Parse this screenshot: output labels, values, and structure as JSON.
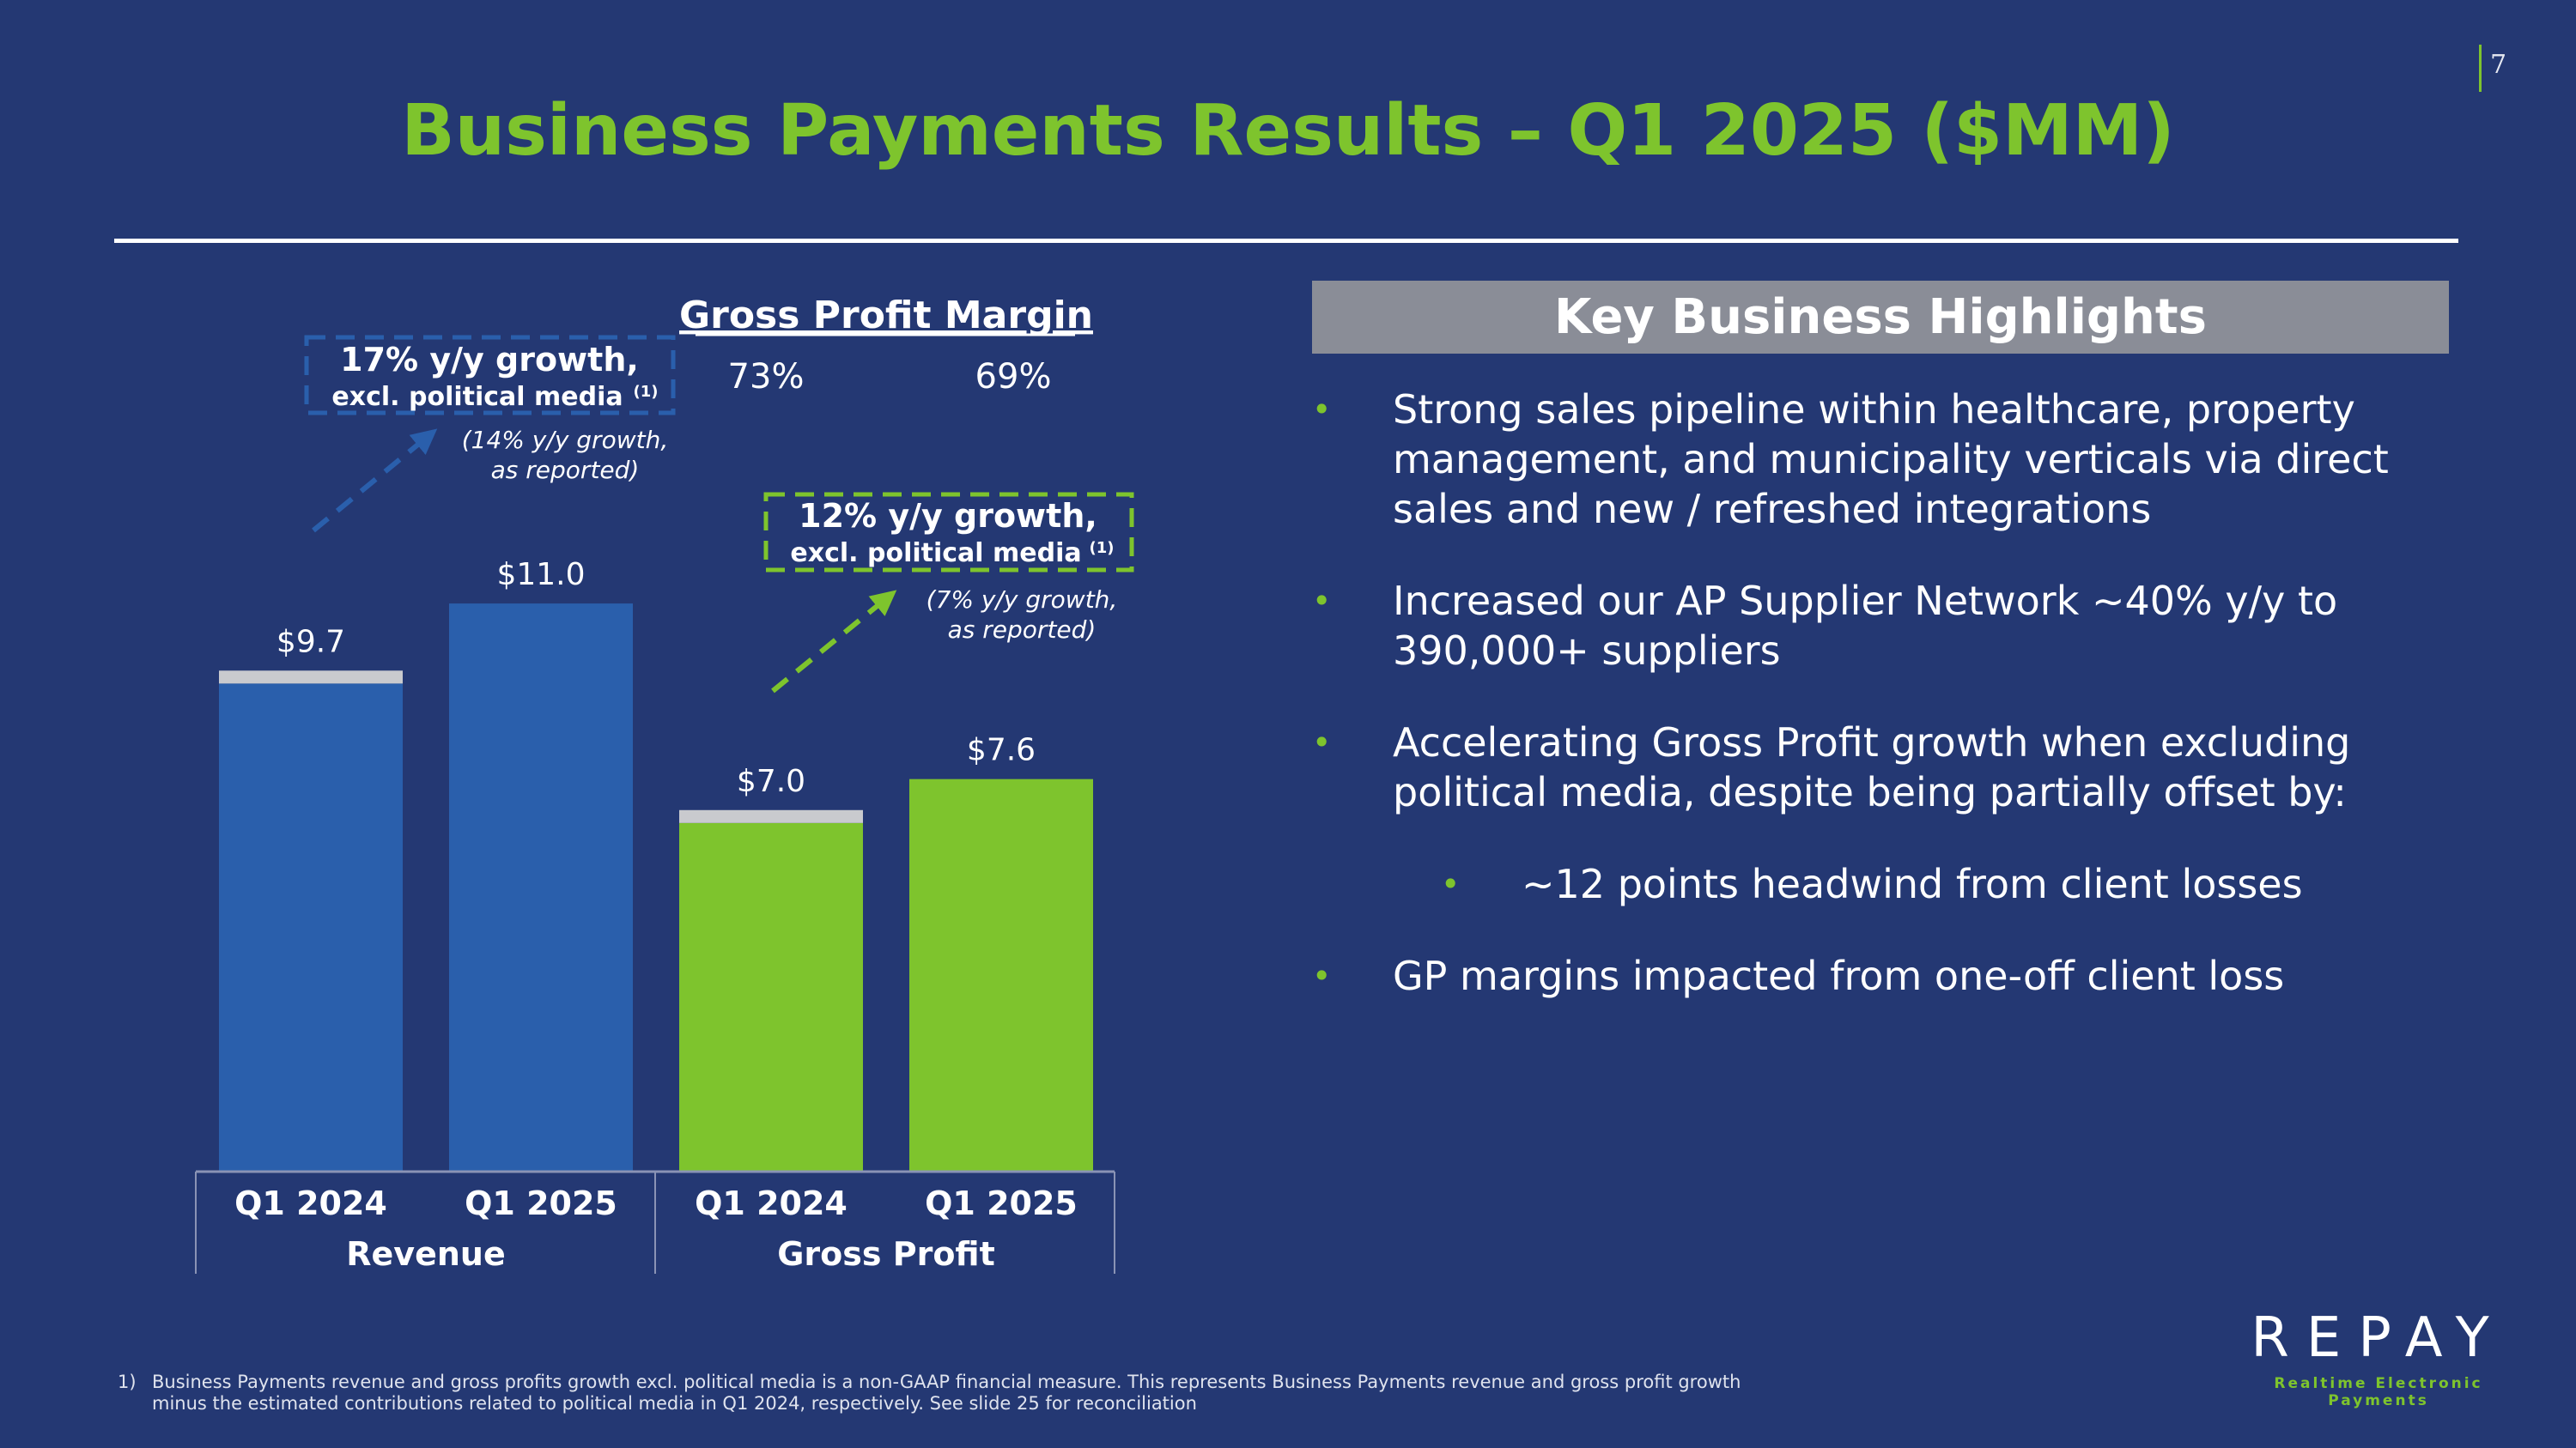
{
  "page_number": "7",
  "title": "Business Payments Results – Q1 2025 ($MM)",
  "colors": {
    "background": "#243873",
    "accent_green": "#7ec42d",
    "revenue_blue": "#2a5fac",
    "political_gray": "#c9cace"
  },
  "chart_data": {
    "type": "bar",
    "groups": [
      {
        "name": "Revenue",
        "categories": [
          "Q1 2024",
          "Q1 2025"
        ],
        "values": [
          9.7,
          11.0
        ],
        "value_labels": [
          "$9.7",
          "$11.0"
        ],
        "color": "#2a5fac"
      },
      {
        "name": "Gross Profit",
        "categories": [
          "Q1 2024",
          "Q1 2025"
        ],
        "values": [
          7.0,
          7.6
        ],
        "value_labels": [
          "$7.0",
          "$7.6"
        ],
        "color": "#7ec42d"
      }
    ],
    "political_media_segment": {
      "values": [
        0.25,
        0,
        0.25,
        0
      ],
      "color": "#c9cace"
    },
    "ylim": [
      0,
      11.5
    ],
    "gross_profit_margin": {
      "title": "Gross Profit Margin",
      "values": [
        "73%",
        "69%"
      ]
    },
    "annotations": {
      "revenue_growth": {
        "headline": "17% y/y growth,",
        "subline": "excl. political media",
        "footnote_mark": "(1)",
        "reported_line1": "(14% y/y growth,",
        "reported_line2": "as reported)"
      },
      "gross_profit_growth": {
        "headline": "12% y/y growth,",
        "subline": "excl. political media",
        "footnote_mark": "(1)",
        "reported_line1": "(7% y/y growth,",
        "reported_line2": "as reported)"
      }
    }
  },
  "highlights": {
    "title": "Key Business Highlights",
    "bullets": [
      {
        "level": 1,
        "text": "Strong sales pipeline within healthcare, property management, and municipality verticals via direct sales and new / refreshed integrations"
      },
      {
        "level": 1,
        "text": "Increased our AP Supplier Network ~40% y/y to 390,000+ suppliers"
      },
      {
        "level": 1,
        "text": "Accelerating Gross Profit growth when excluding political media, despite being partially offset by:"
      },
      {
        "level": 2,
        "text": "~12 points headwind from client losses"
      },
      {
        "level": 1,
        "text": "GP margins impacted from one-off client loss"
      }
    ]
  },
  "footnote": {
    "number": "1)",
    "text": "Business Payments revenue and gross profits growth excl. political media is a non-GAAP financial measure. This represents Business Payments revenue and gross profit growth minus the estimated contributions related to political media in Q1 2024, respectively. See slide 25 for reconciliation"
  },
  "logo": {
    "wordmark": "REPAY",
    "tagline": "Realtime Electronic Payments"
  }
}
